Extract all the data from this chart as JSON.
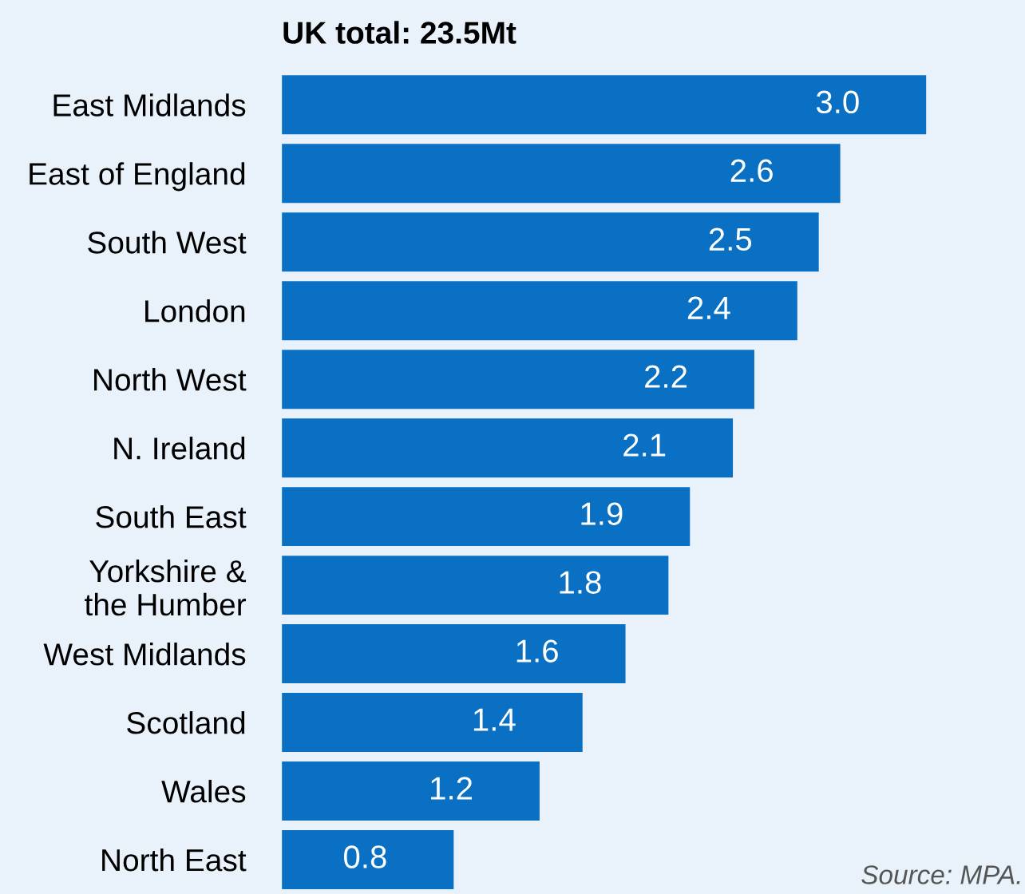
{
  "chart_data": {
    "type": "bar",
    "orientation": "horizontal",
    "title": "UK total: 23.5Mt",
    "categories": [
      "East Midlands",
      "East of England",
      "South West",
      "London",
      "North West",
      "N. Ireland",
      "South East",
      "Yorkshire &\nthe Humber",
      "West Midlands",
      "Scotland",
      "Wales",
      "North East"
    ],
    "values": [
      3.0,
      2.6,
      2.5,
      2.4,
      2.2,
      2.1,
      1.9,
      1.8,
      1.6,
      1.4,
      1.2,
      0.8
    ],
    "value_labels": [
      "3.0",
      "2.6",
      "2.5",
      "2.4",
      "2.2",
      "2.1",
      "1.9",
      "1.8",
      "1.6",
      "1.4",
      "1.2",
      "0.8"
    ],
    "color": "#0a70c4",
    "tick_labels": "y",
    "grid": false,
    "legend": false,
    "annotations": [
      "Source: MPA."
    ]
  }
}
